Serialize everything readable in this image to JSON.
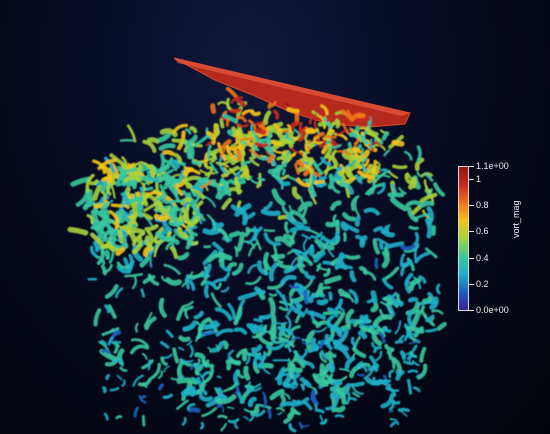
{
  "colors": {
    "background_top": "#10183a",
    "background_bottom": "#020308",
    "colormap": [
      "#3a1f9a",
      "#1f5fc2",
      "#1fb0c8",
      "#37c8a0",
      "#a6d23a",
      "#f3c41a",
      "#f0731a",
      "#c8281e",
      "#8f1a10"
    ]
  },
  "colorbar": {
    "title": "vort_mag",
    "ticks": [
      {
        "value": 1.1,
        "label": "1.1e+00"
      },
      {
        "value": 1.0,
        "label": "1"
      },
      {
        "value": 0.8,
        "label": "0.8"
      },
      {
        "value": 0.6,
        "label": "0.6"
      },
      {
        "value": 0.4,
        "label": "0.4"
      },
      {
        "value": 0.2,
        "label": "0.2"
      },
      {
        "value": 0.0,
        "label": "0.0e+00"
      }
    ],
    "range": [
      0.0,
      1.1
    ]
  }
}
